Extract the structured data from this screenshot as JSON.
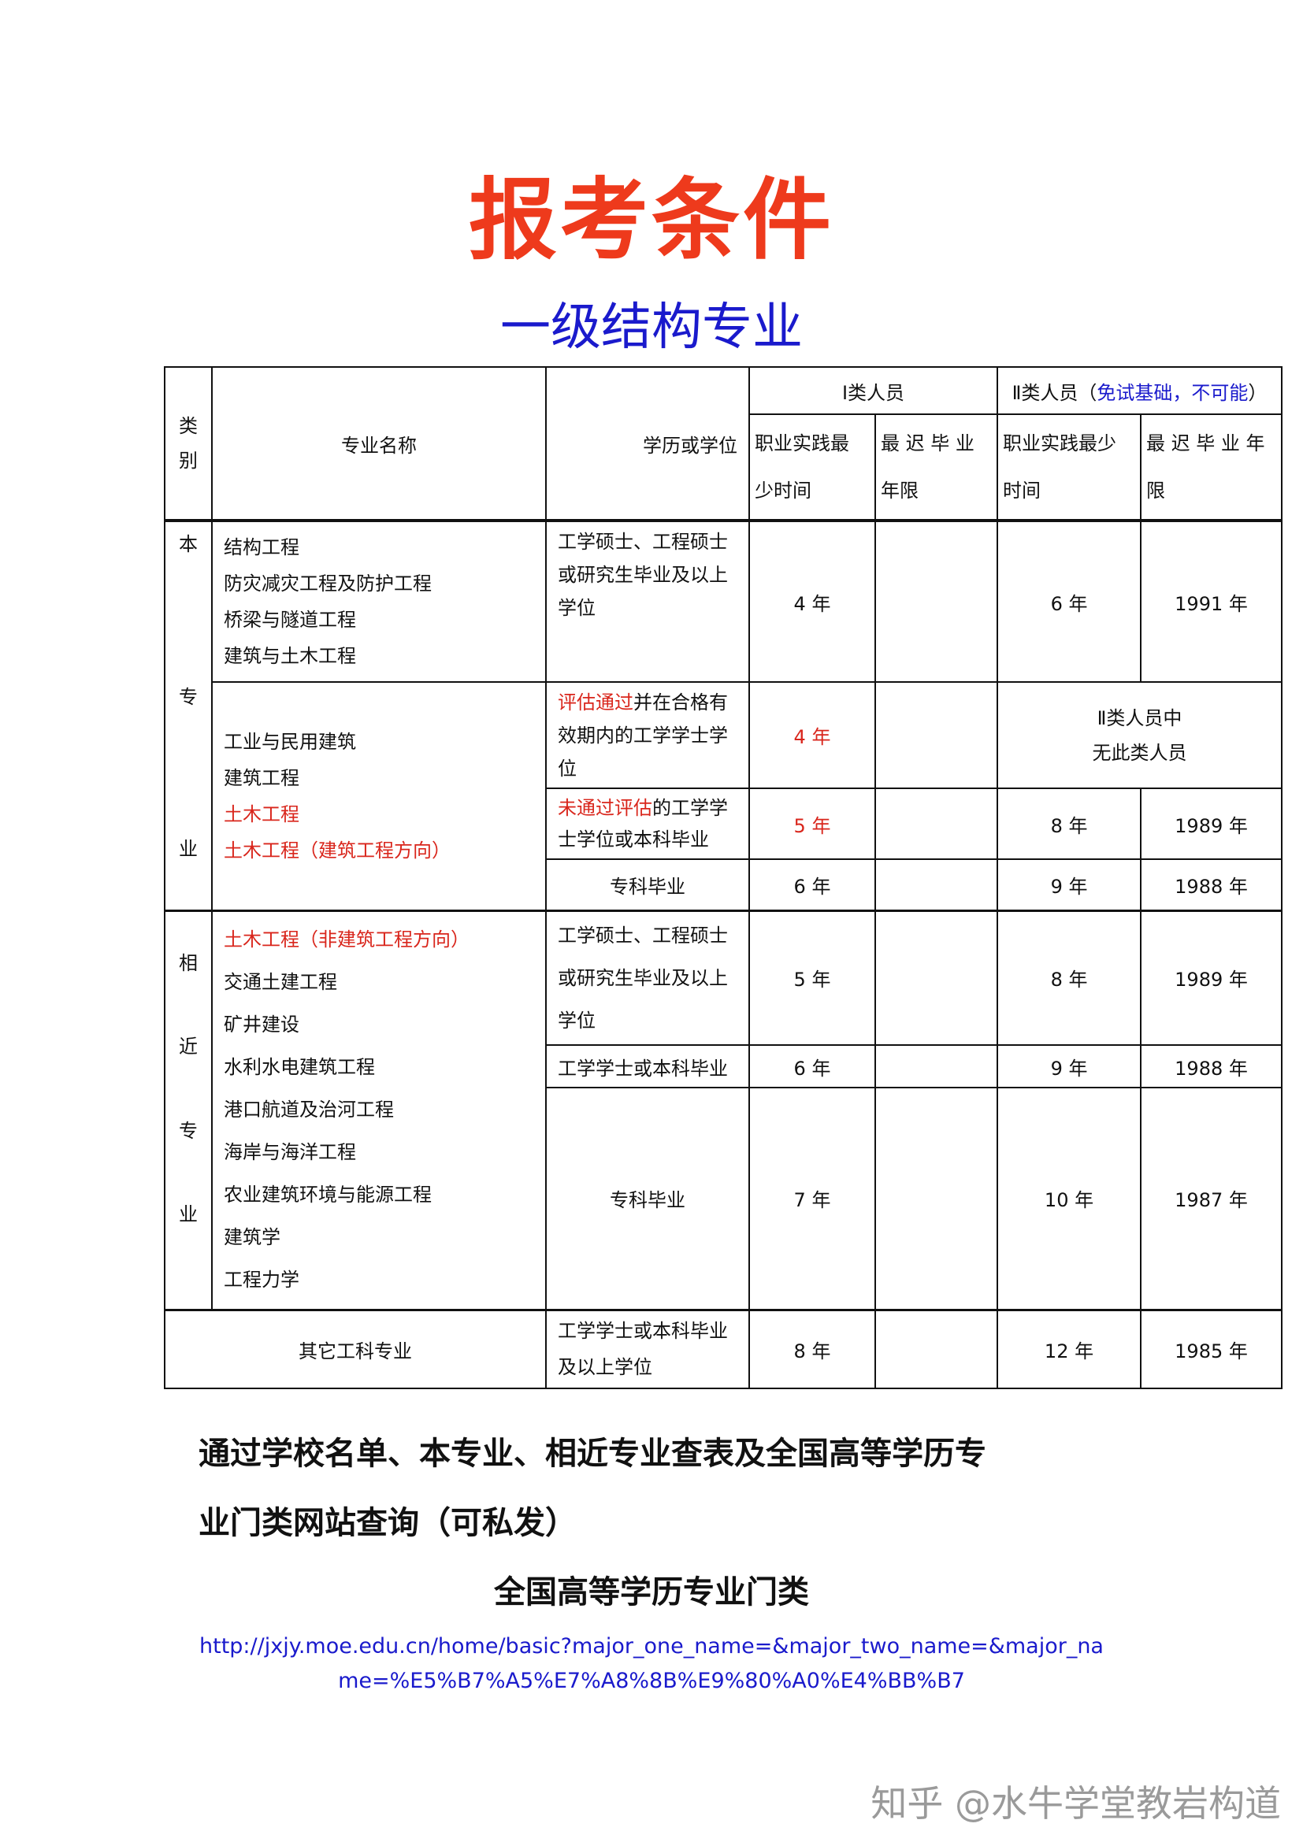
{
  "title": "报考条件",
  "subtitle": "一级结构专业",
  "table": {
    "h_category": [
      "类",
      "别"
    ],
    "h_major": "专业名称",
    "h_edu": "学历或学位",
    "h_class1": "Ⅰ类人员",
    "h_class2": "Ⅱ类人员（",
    "h_class2_note": "免试基础，不可能",
    "h_class2_end": "）",
    "h_practice1": [
      "职业实践最",
      "少时间"
    ],
    "h_grad1": [
      "最 迟 毕 业",
      "年限"
    ],
    "h_practice2": [
      "职业实践最少",
      "时间"
    ],
    "h_grad2": [
      "最 迟 毕 业 年",
      "限"
    ],
    "own_label": [
      "本",
      "专",
      "业"
    ],
    "related_label": [
      "相",
      "近",
      "专",
      "业"
    ],
    "own_majors_a": [
      "结构工程",
      "防灾减灾工程及防护工程",
      "桥梁与隧道工程",
      "建筑与土木工程"
    ],
    "own_majors_b": [
      "工业与民用建筑",
      "建筑工程",
      "土木工程",
      "土木工程（建筑工程方向）"
    ],
    "related_majors": [
      "土木工程（非建筑工程方向）",
      "交通土建工程",
      "矿井建设",
      "水利水电建筑工程",
      "港口航道及治河工程",
      "海岸与海洋工程",
      "农业建筑环境与能源工程",
      "建筑学",
      "工程力学"
    ],
    "rows": {
      "r1": {
        "edu": "工学硕士、工程硕士或研究生毕业及以上学位",
        "p1": "4 年",
        "g1": "",
        "p2": "6 年",
        "g2": "1991 年"
      },
      "r2": {
        "edu_red": "评估通过",
        "edu": "并在合格有效期内的工学学士学位",
        "p1": "4 年",
        "g1": "",
        "class2": [
          "Ⅱ类人员中",
          "无此类人员"
        ]
      },
      "r3": {
        "edu_red": "未通过评估",
        "edu": "的工学学士学位或本科毕业",
        "p1": "5 年",
        "g1": "",
        "p2": "8 年",
        "g2": "1989 年"
      },
      "r4": {
        "edu": "专科毕业",
        "p1": "6 年",
        "g1": "",
        "p2": "9 年",
        "g2": "1988 年"
      },
      "r5": {
        "edu": "工学硕士、工程硕士或研究生毕业及以上学位",
        "p1": "5 年",
        "g1": "",
        "p2": "8 年",
        "g2": "1989 年"
      },
      "r6": {
        "edu": "工学学士或本科毕业",
        "p1": "6 年",
        "g1": "",
        "p2": "9 年",
        "g2": "1988 年"
      },
      "r7": {
        "edu": "专科毕业",
        "p1": "7 年",
        "g1": "",
        "p2": "10 年",
        "g2": "1987 年"
      },
      "r8": {
        "major": "其它工科专业",
        "edu": "工学学士或本科毕业及以上学位",
        "p1": "8 年",
        "g1": "",
        "p2": "12 年",
        "g2": "1985 年"
      }
    }
  },
  "note_lines": [
    "通过学校名单、本专业、相近专业查表及全国高等学历专",
    "业门类网站查询（可私发）"
  ],
  "catalog_title": "全国高等学历专业门类",
  "url_lines": [
    "http://jxjy.moe.edu.cn/home/basic?major_one_name=&major_two_name=&major_na",
    "me=%E5%B7%A5%E7%A8%8B%E9%80%A0%E4%BB%B7"
  ],
  "watermark": "知乎 @水牛学堂教岩构道",
  "colors": {
    "title": "#ee3a1c",
    "subtitle": "#1a1acc",
    "highlight": "#d9261c",
    "link": "#1a1acc"
  }
}
